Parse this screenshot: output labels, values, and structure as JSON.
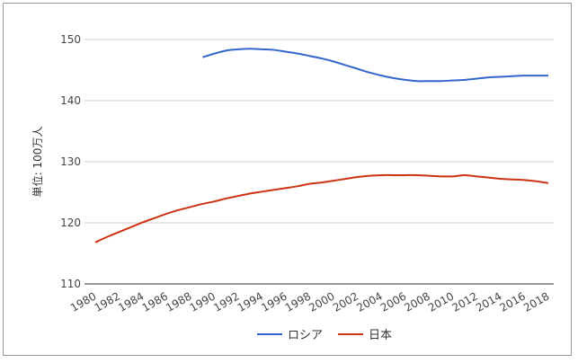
{
  "chart_data": {
    "type": "line",
    "title": "",
    "ylabel": "単位: 100万人",
    "xlabel": "",
    "ylim": [
      110,
      152
    ],
    "yticks": [
      110,
      120,
      130,
      140,
      150
    ],
    "xlim": [
      1980,
      2018
    ],
    "xticks": [
      1980,
      1982,
      1984,
      1986,
      1988,
      1990,
      1992,
      1994,
      1996,
      1998,
      2000,
      2002,
      2004,
      2006,
      2008,
      2010,
      2012,
      2014,
      2016,
      2018
    ],
    "grid": true,
    "legend": "bottom",
    "series": [
      {
        "name": "ロシア",
        "color": "#3366cc",
        "x": [
          1989,
          1990,
          1991,
          1992,
          1993,
          1994,
          1995,
          1996,
          1997,
          1998,
          1999,
          2000,
          2001,
          2002,
          2003,
          2004,
          2005,
          2006,
          2007,
          2008,
          2009,
          2010,
          2011,
          2012,
          2013,
          2014,
          2015,
          2016,
          2017,
          2018
        ],
        "values": [
          147.1,
          147.7,
          148.2,
          148.4,
          148.5,
          148.4,
          148.3,
          148.0,
          147.7,
          147.3,
          146.9,
          146.4,
          145.8,
          145.2,
          144.6,
          144.1,
          143.7,
          143.4,
          143.2,
          143.2,
          143.2,
          143.3,
          143.4,
          143.6,
          143.8,
          143.9,
          144.0,
          144.1,
          144.1,
          144.1
        ]
      },
      {
        "name": "日本",
        "color": "#cc3311",
        "x": [
          1980,
          1981,
          1982,
          1983,
          1984,
          1985,
          1986,
          1987,
          1988,
          1989,
          1990,
          1991,
          1992,
          1993,
          1994,
          1995,
          1996,
          1997,
          1998,
          1999,
          2000,
          2001,
          2002,
          2003,
          2004,
          2005,
          2006,
          2007,
          2008,
          2009,
          2010,
          2011,
          2012,
          2013,
          2014,
          2015,
          2016,
          2017,
          2018
        ],
        "values": [
          116.8,
          117.7,
          118.5,
          119.3,
          120.1,
          120.8,
          121.5,
          122.1,
          122.6,
          123.1,
          123.5,
          124.0,
          124.4,
          124.8,
          125.1,
          125.4,
          125.7,
          126.0,
          126.4,
          126.6,
          126.9,
          127.2,
          127.5,
          127.7,
          127.8,
          127.8,
          127.8,
          127.8,
          127.7,
          127.6,
          127.6,
          127.8,
          127.6,
          127.4,
          127.2,
          127.1,
          127.0,
          126.8,
          126.5
        ]
      }
    ]
  }
}
